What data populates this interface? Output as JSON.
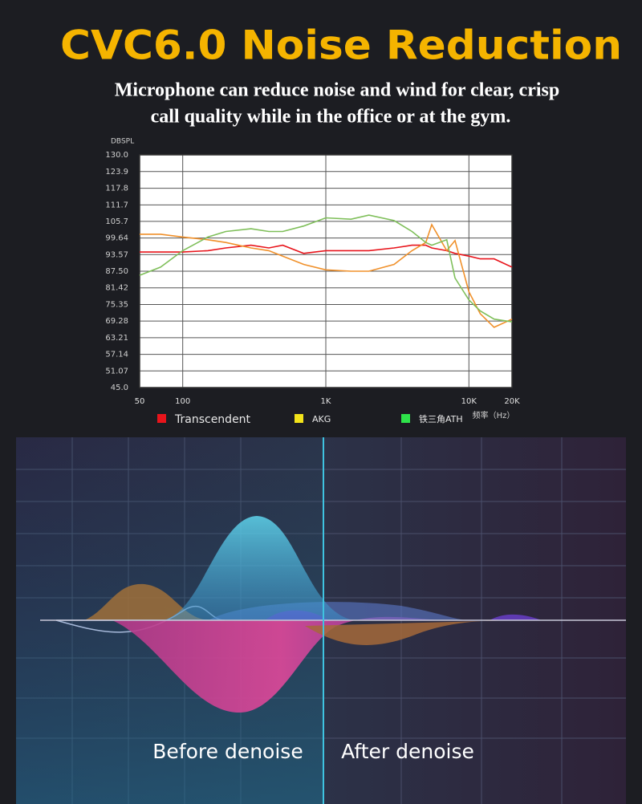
{
  "header": {
    "title": "CVC6.0 Noise Reduction",
    "subtitle_lines": [
      "Microphone can reduce noise and wind for clear, crisp",
      "call quality while in the office or at the gym."
    ]
  },
  "chart_data": {
    "type": "line",
    "ylabel": "DBSPL",
    "xlabel": "频率（Hz）",
    "log_x": true,
    "grid": true,
    "x": [
      50,
      70,
      100,
      150,
      200,
      300,
      400,
      500,
      700,
      1000,
      1500,
      2000,
      3000,
      4000,
      5000,
      5500,
      7000,
      8000,
      10000,
      12000,
      15000,
      20000
    ],
    "xlim": [
      50,
      20000
    ],
    "xticks": [
      50,
      100,
      {
        "value": 1000,
        "label": "1K"
      },
      {
        "value": 10000,
        "label": "10K"
      },
      {
        "value": 20000,
        "label": "20K"
      }
    ],
    "ylim": [
      45,
      130
    ],
    "yticks": [
      {
        "value": 130,
        "label": "130.0"
      },
      123.9,
      117.8,
      111.7,
      105.7,
      99.64,
      93.57,
      {
        "value": 87.5,
        "label": "87.50"
      },
      81.42,
      75.35,
      69.28,
      63.21,
      57.14,
      51.07,
      {
        "value": 45,
        "label": "45.0"
      }
    ],
    "series": [
      {
        "name": "Transcendent",
        "color": "#e8141b",
        "values": [
          94.5,
          94.5,
          94.5,
          95,
          96,
          97,
          96,
          97,
          94,
          95,
          95,
          95,
          96,
          97,
          97,
          96,
          95,
          94,
          93,
          92,
          92,
          89
        ]
      },
      {
        "name": "AKG",
        "color": "#f2e31a",
        "line_color": "#f0902a",
        "values": [
          101,
          101,
          100,
          99,
          98,
          96,
          95,
          93,
          90,
          88,
          87.5,
          87.5,
          90,
          95,
          98,
          104.5,
          95,
          98.7,
          80,
          72,
          67,
          70
        ]
      },
      {
        "name": "铁三角ATH",
        "color": "#2ee34a",
        "line_color": "#7fbf5a",
        "values": [
          86,
          89,
          95,
          100,
          102,
          103,
          102,
          102,
          104,
          107,
          106.5,
          108,
          106,
          102,
          98,
          97,
          99,
          85,
          77,
          73,
          70,
          69
        ]
      }
    ]
  },
  "illustration": {
    "labels": [
      "Before denoise",
      "After denoise"
    ]
  }
}
